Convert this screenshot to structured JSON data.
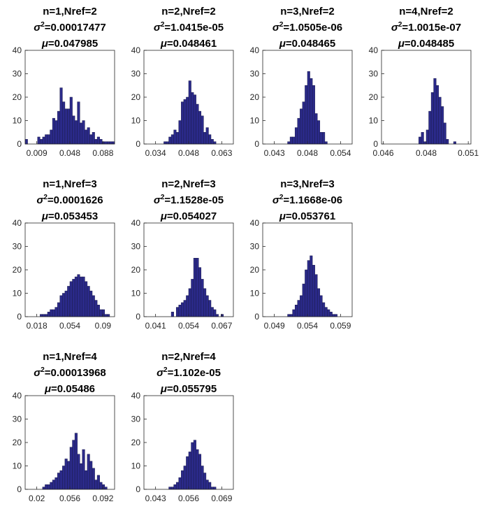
{
  "figure": {
    "bar_color": "#2b2a8a",
    "bar_edge": "#1a1a4a"
  },
  "chart_data": [
    {
      "type": "bar",
      "title_lines": [
        "n=1,Nref=2",
        "σ²=0.00017477",
        "μ=0.047985"
      ],
      "title": {
        "line1": "n=1,Nref=2",
        "sigma": "0.00017477",
        "mu": "0.047985"
      },
      "xticks": [
        "0.009",
        "0.048",
        "0.088"
      ],
      "yticks": [
        "0",
        "10",
        "20",
        "30",
        "40"
      ],
      "ylim": [
        0,
        40
      ],
      "values": [
        2,
        0,
        0,
        0,
        0,
        3,
        2,
        3,
        4,
        4,
        6,
        11,
        10,
        14,
        24,
        18,
        15,
        15,
        20,
        12,
        10,
        18,
        9,
        10,
        6,
        7,
        4,
        5,
        2,
        3,
        2,
        1,
        1,
        1,
        1,
        1
      ]
    },
    {
      "type": "bar",
      "title": {
        "line1": "n=2,Nref=2",
        "sigma": "1.0415e-05",
        "mu": "0.048461"
      },
      "xticks": [
        "0.034",
        "0.048",
        "0.063"
      ],
      "yticks": [
        "0",
        "10",
        "20",
        "30",
        "40"
      ],
      "ylim": [
        0,
        40
      ],
      "values": [
        0,
        0,
        0,
        0,
        0,
        0,
        0,
        0,
        1,
        1,
        3,
        4,
        6,
        5,
        10,
        18,
        19,
        20,
        27,
        22,
        21,
        17,
        14,
        12,
        5,
        7,
        4,
        2,
        1,
        0,
        0,
        0,
        0,
        0,
        0,
        0
      ]
    },
    {
      "type": "bar",
      "title": {
        "line1": "n=3,Nref=2",
        "sigma": "1.0505e-06",
        "mu": "0.048465"
      },
      "xticks": [
        "0.043",
        "0.048",
        "0.054"
      ],
      "yticks": [
        "0",
        "10",
        "20",
        "30",
        "40"
      ],
      "ylim": [
        0,
        40
      ],
      "values": [
        0,
        0,
        0,
        0,
        0,
        0,
        0,
        0,
        0,
        0,
        1,
        3,
        3,
        7,
        11,
        15,
        18,
        25,
        31,
        28,
        25,
        13,
        10,
        5,
        5,
        1,
        0,
        0,
        0,
        0,
        0,
        0,
        0,
        0,
        0,
        0
      ]
    },
    {
      "type": "bar",
      "title": {
        "line1": "n=4,Nref=2",
        "sigma": "1.0015e-07",
        "mu": "0.048485"
      },
      "xticks": [
        "0.046",
        "0.048",
        "0.051"
      ],
      "yticks": [
        "0",
        "10",
        "20",
        "30",
        "40"
      ],
      "ylim": [
        0,
        40
      ],
      "values": [
        0,
        0,
        0,
        0,
        0,
        0,
        0,
        0,
        0,
        0,
        0,
        0,
        0,
        0,
        0,
        3,
        5,
        1,
        6,
        14,
        22,
        28,
        25,
        20,
        16,
        9,
        2,
        0,
        0,
        1,
        0,
        0,
        0,
        0,
        0,
        0
      ]
    },
    {
      "type": "bar",
      "title": {
        "line1": "n=1,Nref=3",
        "sigma": "0.0001626",
        "mu": "0.053453"
      },
      "xticks": [
        "0.018",
        "0.054",
        "0.09"
      ],
      "yticks": [
        "0",
        "10",
        "20",
        "30",
        "40"
      ],
      "ylim": [
        0,
        40
      ],
      "values": [
        0,
        0,
        0,
        0,
        0,
        0,
        1,
        1,
        1,
        2,
        3,
        3,
        4,
        6,
        9,
        10,
        11,
        13,
        15,
        16,
        17,
        18,
        17,
        17,
        15,
        13,
        11,
        9,
        7,
        5,
        3,
        3,
        1,
        1,
        0,
        0
      ]
    },
    {
      "type": "bar",
      "title": {
        "line1": "n=2,Nref=3",
        "sigma": "1.1528e-05",
        "mu": "0.054027"
      },
      "xticks": [
        "0.041",
        "0.054",
        "0.067"
      ],
      "yticks": [
        "0",
        "10",
        "20",
        "30",
        "40"
      ],
      "ylim": [
        0,
        40
      ],
      "values": [
        0,
        0,
        0,
        0,
        0,
        0,
        0,
        0,
        0,
        0,
        0,
        2,
        0,
        4,
        5,
        6,
        7,
        9,
        12,
        16,
        25,
        25,
        21,
        16,
        12,
        9,
        7,
        4,
        3,
        1,
        0,
        1,
        0,
        0,
        0,
        0
      ]
    },
    {
      "type": "bar",
      "title": {
        "line1": "n=3,Nref=3",
        "sigma": "1.1668e-06",
        "mu": "0.053761"
      },
      "xticks": [
        "0.049",
        "0.054",
        "0.059"
      ],
      "yticks": [
        "0",
        "10",
        "20",
        "30",
        "40"
      ],
      "ylim": [
        0,
        40
      ],
      "values": [
        0,
        0,
        0,
        0,
        0,
        0,
        0,
        0,
        0,
        0,
        1,
        1,
        3,
        5,
        7,
        9,
        14,
        20,
        24,
        26,
        22,
        18,
        12,
        9,
        6,
        4,
        3,
        2,
        1,
        1,
        0,
        0,
        0,
        0,
        0,
        0
      ]
    },
    {
      "type": "bar",
      "title": {
        "line1": "n=1,Nref=4",
        "sigma": "0.00013968",
        "mu": "0.05486"
      },
      "xticks": [
        "0.02",
        "0.056",
        "0.092"
      ],
      "yticks": [
        "0",
        "10",
        "20",
        "30",
        "40"
      ],
      "ylim": [
        0,
        40
      ],
      "values": [
        0,
        0,
        0,
        0,
        0,
        0,
        0,
        1,
        2,
        2,
        3,
        4,
        5,
        7,
        8,
        10,
        13,
        12,
        18,
        21,
        24,
        15,
        11,
        17,
        8,
        15,
        12,
        9,
        4,
        6,
        3,
        2,
        1,
        0,
        0,
        0
      ]
    },
    {
      "type": "bar",
      "title": {
        "line1": "n=2,Nref=4",
        "sigma": "1.102e-05",
        "mu": "0.055795"
      },
      "xticks": [
        "0.043",
        "0.056",
        "0.069"
      ],
      "yticks": [
        "0",
        "10",
        "20",
        "30",
        "40"
      ],
      "ylim": [
        0,
        40
      ],
      "values": [
        0,
        0,
        0,
        0,
        0,
        0,
        0,
        0,
        0,
        0,
        1,
        1,
        2,
        3,
        5,
        8,
        10,
        14,
        16,
        20,
        21,
        17,
        15,
        10,
        7,
        4,
        3,
        1,
        1,
        0,
        0,
        0,
        0,
        0,
        0,
        0
      ]
    }
  ]
}
